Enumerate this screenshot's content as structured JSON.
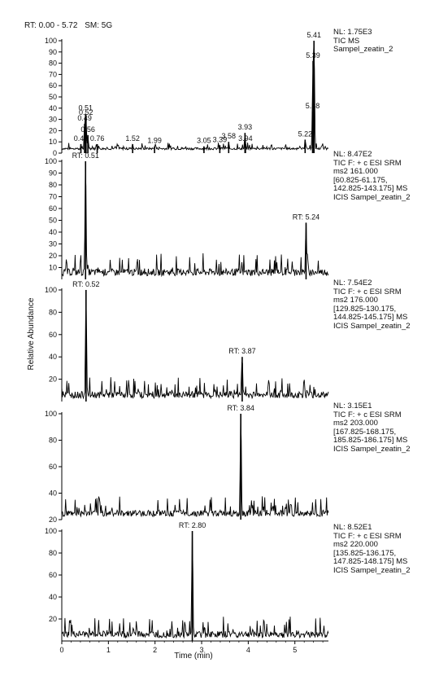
{
  "header": {
    "rt_range": "RT: 0.00 - 5.72",
    "smoothing": "SM: 5G"
  },
  "axes": {
    "ylabel": "Relative Abundance",
    "xlabel": "Time (min)"
  },
  "chart_data": [
    {
      "type": "line",
      "annotation": [
        "NL: 1.75E3",
        "TIC  MS",
        "Sampel_zeatin_2"
      ],
      "xlim": [
        0,
        5.72
      ],
      "ylim": [
        0,
        100
      ],
      "yticks": [
        0,
        10,
        20,
        30,
        40,
        50,
        60,
        70,
        80,
        90,
        100
      ],
      "peaks": [
        {
          "x": 0.41,
          "y": 8,
          "label": "0.41"
        },
        {
          "x": 0.49,
          "y": 26,
          "label": "0.49"
        },
        {
          "x": 0.51,
          "y": 35,
          "label": "0.51"
        },
        {
          "x": 0.52,
          "y": 31,
          "label": "0.52"
        },
        {
          "x": 0.56,
          "y": 16,
          "label": "0.56"
        },
        {
          "x": 0.76,
          "y": 8,
          "label": "0.76"
        },
        {
          "x": 1.52,
          "y": 8,
          "label": "1.52"
        },
        {
          "x": 1.99,
          "y": 6,
          "label": "1.99"
        },
        {
          "x": 3.05,
          "y": 6,
          "label": "3.05"
        },
        {
          "x": 3.39,
          "y": 7,
          "label": "3.39"
        },
        {
          "x": 3.58,
          "y": 10,
          "label": "3.58"
        },
        {
          "x": 3.93,
          "y": 18,
          "label": "3.93"
        },
        {
          "x": 3.94,
          "y": 8,
          "label": "3.94"
        },
        {
          "x": 5.22,
          "y": 12,
          "label": "5.22"
        },
        {
          "x": 5.38,
          "y": 37,
          "label": "5.38"
        },
        {
          "x": 5.39,
          "y": 82,
          "label": "5.39"
        },
        {
          "x": 5.41,
          "y": 100,
          "label": "5.41"
        }
      ]
    },
    {
      "type": "line",
      "annotation": [
        "NL: 8.47E2",
        "TIC F: + c ESI SRM",
        "ms2 161.000",
        "[60.825-61.175,",
        "142.825-143.175]  MS",
        "ICIS Sampel_zeatin_2"
      ],
      "xlim": [
        0,
        5.72
      ],
      "ylim": [
        0,
        100
      ],
      "yticks": [
        10,
        20,
        30,
        40,
        50,
        60,
        70,
        80,
        90,
        100
      ],
      "peaks": [
        {
          "x": 0.51,
          "y": 100,
          "label": "RT: 0.51"
        },
        {
          "x": 5.24,
          "y": 48,
          "label": "RT: 5.24"
        }
      ]
    },
    {
      "type": "line",
      "annotation": [
        "NL: 7.54E2",
        "TIC F: + c ESI SRM",
        "ms2 176.000",
        "[129.825-130.175,",
        "144.825-145.175]  MS",
        "ICIS Sampel_zeatin_2"
      ],
      "xlim": [
        0,
        5.72
      ],
      "ylim": [
        0,
        100
      ],
      "yticks": [
        20,
        40,
        60,
        80,
        100
      ],
      "peaks": [
        {
          "x": 0.52,
          "y": 100,
          "label": "RT: 0.52"
        },
        {
          "x": 3.87,
          "y": 40,
          "label": "RT: 3.87"
        }
      ]
    },
    {
      "type": "line",
      "annotation": [
        "NL: 3.15E1",
        "TIC F: + c ESI SRM",
        "ms2 203.000",
        "[167.825-168.175,",
        "185.825-186.175]  MS",
        "ICIS Sampel_zeatin_2"
      ],
      "xlim": [
        0,
        5.72
      ],
      "ylim": [
        20,
        100
      ],
      "yticks": [
        20,
        40,
        60,
        80,
        100
      ],
      "peaks": [
        {
          "x": 3.84,
          "y": 100,
          "label": "RT: 3.84"
        }
      ]
    },
    {
      "type": "line",
      "annotation": [
        "NL: 8.52E1",
        "TIC F: + c ESI SRM",
        "ms2 220.000",
        "[135.825-136.175,",
        "147.825-148.175]  MS",
        "ICIS Sampel_zeatin_2"
      ],
      "xlim": [
        0,
        5.72
      ],
      "ylim": [
        0,
        100
      ],
      "yticks": [
        20,
        40,
        60,
        80,
        100
      ],
      "xticks": [
        0,
        1,
        2,
        3,
        4,
        5
      ],
      "peaks": [
        {
          "x": 2.8,
          "y": 100,
          "label": "RT: 2.80"
        }
      ]
    }
  ]
}
